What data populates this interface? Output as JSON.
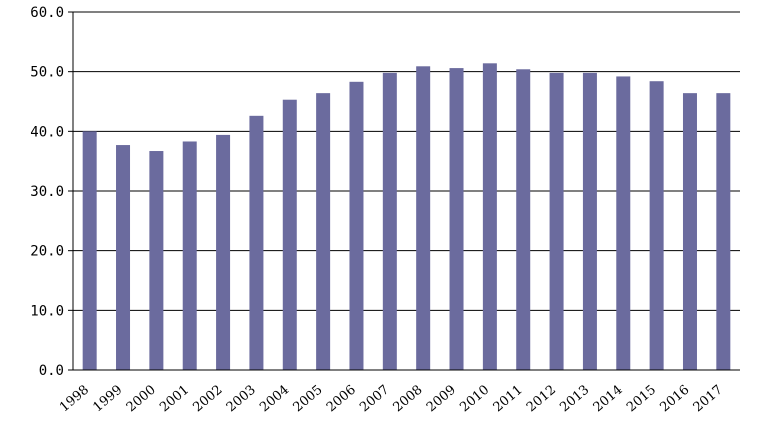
{
  "chart_data": {
    "type": "bar",
    "title": "",
    "xlabel": "",
    "ylabel": "",
    "categories": [
      "1998",
      "1999",
      "2000",
      "2001",
      "2002",
      "2003",
      "2004",
      "2005",
      "2006",
      "2007",
      "2008",
      "2009",
      "2010",
      "2011",
      "2012",
      "2013",
      "2014",
      "2015",
      "2016",
      "2017"
    ],
    "values": [
      40.0,
      37.7,
      36.7,
      38.3,
      39.4,
      42.6,
      45.3,
      46.4,
      48.3,
      49.8,
      50.9,
      50.6,
      51.4,
      50.4,
      49.8,
      49.8,
      49.2,
      48.4,
      46.4,
      46.4
    ],
    "ylim": [
      0,
      60
    ],
    "yticks": [
      "0.0",
      "10.0",
      "20.0",
      "30.0",
      "40.0",
      "50.0",
      "60.0"
    ],
    "grid": true,
    "legend": "none",
    "bar_color": "#6b6b9e"
  }
}
